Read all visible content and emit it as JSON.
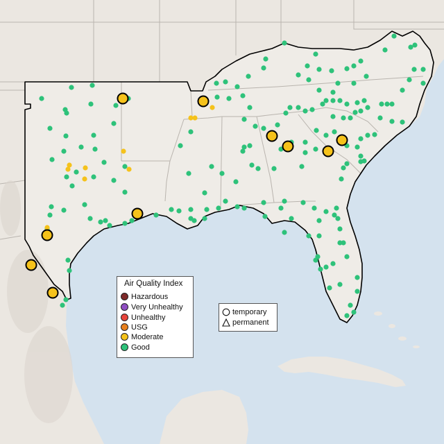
{
  "legend": {
    "title": "Air Quality Index",
    "categories": [
      {
        "label": "Hazardous",
        "color": "#7e2a2a"
      },
      {
        "label": "Very Unhealthy",
        "color": "#8f4fc2"
      },
      {
        "label": "Unhealthy",
        "color": "#e8453c"
      },
      {
        "label": "USG",
        "color": "#e8801e"
      },
      {
        "label": "Moderate",
        "color": "#f5c21b"
      },
      {
        "label": "Good",
        "color": "#2ec27a"
      }
    ]
  },
  "shape_legend": {
    "temporary": "temporary",
    "permanent": "permanent"
  },
  "colors": {
    "ocean": "#d4e2ee",
    "land": "#ebe7e1",
    "highlight_region": "#f0ede8",
    "state_border": "#b9b4ae",
    "region_outline": "#000000",
    "terrain_dark": "#d6d0c8"
  }
}
